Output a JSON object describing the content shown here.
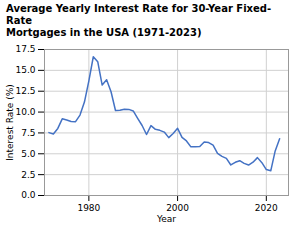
{
  "chart_data": {
    "type": "line",
    "title": "Average Yearly Interest Rate for 30-Year Fixed-Rate\nMortgages in the USA (1971-2023)",
    "x_label": "Year",
    "y_label": "Interest Rate (%)",
    "x": [
      1971,
      1972,
      1973,
      1974,
      1975,
      1976,
      1977,
      1978,
      1979,
      1980,
      1981,
      1982,
      1983,
      1984,
      1985,
      1986,
      1987,
      1988,
      1989,
      1990,
      1991,
      1992,
      1993,
      1994,
      1995,
      1996,
      1997,
      1998,
      1999,
      2000,
      2001,
      2002,
      2003,
      2004,
      2005,
      2006,
      2007,
      2008,
      2009,
      2010,
      2011,
      2012,
      2013,
      2014,
      2015,
      2016,
      2017,
      2018,
      2019,
      2020,
      2021,
      2022,
      2023
    ],
    "values": [
      7.54,
      7.38,
      8.04,
      9.19,
      9.05,
      8.87,
      8.85,
      9.64,
      11.2,
      13.74,
      16.63,
      16.04,
      13.24,
      13.88,
      12.43,
      10.19,
      10.21,
      10.34,
      10.32,
      10.13,
      9.25,
      8.39,
      7.31,
      8.38,
      7.93,
      7.81,
      7.6,
      6.94,
      7.44,
      8.05,
      6.97,
      6.54,
      5.83,
      5.84,
      5.87,
      6.41,
      6.34,
      6.03,
      5.04,
      4.69,
      4.45,
      3.66,
      3.98,
      4.17,
      3.85,
      3.65,
      3.99,
      4.54,
      3.94,
      3.11,
      2.96,
      5.34,
      6.81
    ],
    "color": "#4472C4",
    "xlim": [
      1970,
      2025
    ],
    "xticks": [
      1980,
      2000,
      2020
    ],
    "ylim": [
      0.0,
      17.5
    ],
    "yticks": [
      {
        "value": 0,
        "label": "0.0"
      },
      2.5,
      {
        "value": 5,
        "label": "5.0"
      },
      7.5,
      {
        "value": 10,
        "label": "10.0"
      },
      12.5,
      {
        "value": 15,
        "label": "15.0"
      },
      17.5
    ],
    "grid": true
  }
}
